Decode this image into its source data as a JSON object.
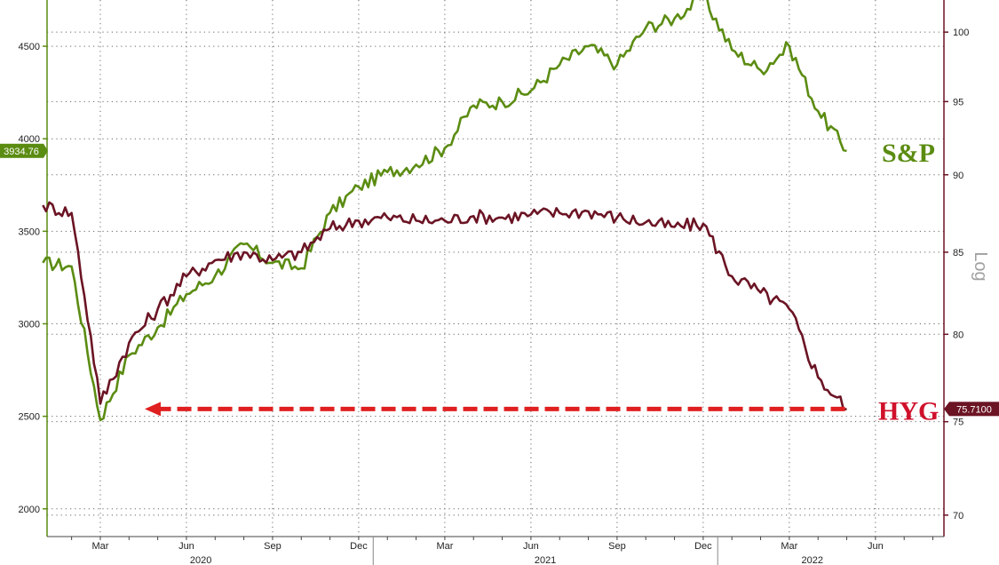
{
  "chart_data": {
    "type": "line",
    "title": "",
    "grid": true,
    "x_months": [
      "Jan 2020",
      "Feb 2020",
      "Mar 2020",
      "Apr 2020",
      "May 2020",
      "Jun 2020",
      "Jul 2020",
      "Aug 2020",
      "Sep 2020",
      "Oct 2020",
      "Nov 2020",
      "Dec 2020",
      "Jan 2021",
      "Feb 2021",
      "Mar 2021",
      "Apr 2021",
      "May 2021",
      "Jun 2021",
      "Jul 2021",
      "Aug 2021",
      "Sep 2021",
      "Oct 2021",
      "Nov 2021",
      "Dec 2021",
      "Jan 2022",
      "Feb 2022",
      "Mar 2022",
      "Apr 2022",
      "May 2022"
    ],
    "x_tick_labels": [
      "Mar",
      "Jun",
      "Sep",
      "Dec",
      "Mar",
      "Jun",
      "Sep",
      "Dec",
      "Mar",
      "Jun"
    ],
    "x_tick_months": [
      "Mar 2020",
      "Jun 2020",
      "Sep 2020",
      "Dec 2020",
      "Mar 2021",
      "Jun 2021",
      "Sep 2021",
      "Dec 2021",
      "Mar 2022",
      "Jun 2022"
    ],
    "year_labels": [
      "2020",
      "2021",
      "2022"
    ],
    "left_axis": {
      "range": [
        1850,
        4750
      ],
      "ticks": [
        "2000",
        "2500",
        "3000",
        "3500",
        "4000",
        "4500"
      ]
    },
    "right_axis": {
      "title": "Log",
      "range": [
        68.9,
        102.4
      ],
      "scale": "log",
      "ticks": [
        "70",
        "75",
        "80",
        "85",
        "90",
        "95",
        "100"
      ]
    },
    "series": [
      {
        "name": "S&P",
        "axis": "left",
        "color": "#5b8c12",
        "last_value_label": "3934.76",
        "values": [
          3330,
          3310,
          2480,
          2830,
          2980,
          3160,
          3260,
          3430,
          3330,
          3300,
          3600,
          3740,
          3820,
          3860,
          3950,
          4180,
          4200,
          4260,
          4400,
          4500,
          4400,
          4600,
          4650,
          4770,
          4480,
          4370,
          4500,
          4150,
          3934.76
        ]
      },
      {
        "name": "HYG",
        "axis": "right",
        "color": "#6b1424",
        "last_value_label": "75.7100",
        "values": [
          88.0,
          87.5,
          76.0,
          79.5,
          81.5,
          83.5,
          84.5,
          85.0,
          84.5,
          85.0,
          86.5,
          87.0,
          87.2,
          87.0,
          87.0,
          87.3,
          87.2,
          87.4,
          87.5,
          87.6,
          87.2,
          86.9,
          86.6,
          86.8,
          83.5,
          82.5,
          81.5,
          77.5,
          75.71
        ]
      }
    ],
    "annotation": {
      "type": "dashed-arrow",
      "color": "#e02020",
      "y_value": 75.71,
      "axis": "right",
      "from_month": "May 2022",
      "to_month": "Mar 2020"
    }
  }
}
